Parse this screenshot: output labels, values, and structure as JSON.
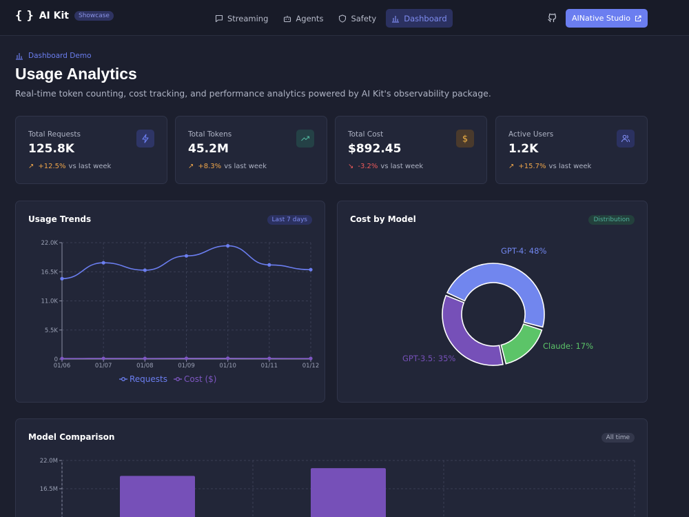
{
  "app": {
    "logo_glyph": "{ }",
    "title": "AI Kit",
    "badge": "Showcase"
  },
  "nav": [
    {
      "label": "Streaming",
      "icon": "chat-bubble-icon",
      "active": false
    },
    {
      "label": "Agents",
      "icon": "bot-icon",
      "active": false
    },
    {
      "label": "Safety",
      "icon": "shield-icon",
      "active": false
    },
    {
      "label": "Dashboard",
      "icon": "bar-chart-icon",
      "active": true
    }
  ],
  "header_actions": {
    "github_icon": "github-icon",
    "studio_label": "AINative Studio",
    "studio_icon": "external-link-icon"
  },
  "page": {
    "eyebrow": "Dashboard Demo",
    "title": "Usage Analytics",
    "subtitle": "Real-time token counting, cost tracking, and performance analytics powered by AI Kit's observability package."
  },
  "stats": [
    {
      "label": "Total Requests",
      "value": "125.8K",
      "arrow": "↗",
      "change": "+12.5%",
      "suffix": "vs last week",
      "trend": "up",
      "icon": "lightning-icon",
      "icon_color": "#6b7ef0",
      "icon_bg": "#2e3566"
    },
    {
      "label": "Total Tokens",
      "value": "45.2M",
      "arrow": "↗",
      "change": "+8.3%",
      "suffix": "vs last week",
      "trend": "up",
      "icon": "trending-up-icon",
      "icon_color": "#4fb09a",
      "icon_bg": "#244146"
    },
    {
      "label": "Total Cost",
      "value": "$892.45",
      "arrow": "↘",
      "change": "-3.2%",
      "suffix": "vs last week",
      "trend": "down",
      "icon": "dollar-icon",
      "icon_color": "#f0b145",
      "icon_bg": "#4a3a2c"
    },
    {
      "label": "Active Users",
      "value": "1.2K",
      "arrow": "↗",
      "change": "+15.7%",
      "suffix": "vs last week",
      "trend": "up",
      "icon": "users-icon",
      "icon_color": "#7f8cf0",
      "icon_bg": "#2b3160"
    }
  ],
  "colors": {
    "up": "#f0a64a",
    "down": "#ef5a5a",
    "requests": "#6b7ef0",
    "cost": "#7e57c2",
    "gpt4": "#7186ee",
    "gpt35": "#7650b8",
    "claude": "#5cc468",
    "bar": "#7650b8"
  },
  "usage_panel": {
    "title": "Usage Trends",
    "badge": "Last 7 days"
  },
  "cost_panel": {
    "title": "Cost by Model",
    "badge": "Distribution"
  },
  "model_panel": {
    "title": "Model Comparison",
    "badge": "All time"
  },
  "chart_data": [
    {
      "type": "line",
      "title": "Usage Trends",
      "x": [
        "01/06",
        "01/07",
        "01/08",
        "01/09",
        "01/10",
        "01/11",
        "01/12"
      ],
      "ylim": [
        0,
        22000
      ],
      "yticks": [
        "0",
        "5.5K",
        "11.0K",
        "16.5K",
        "22.0K"
      ],
      "grid": true,
      "legend": "bottom",
      "series": [
        {
          "name": "Requests",
          "values": [
            15200,
            18200,
            16800,
            19500,
            21400,
            17800,
            16900
          ]
        },
        {
          "name": "Cost ($)",
          "values": [
            120,
            140,
            130,
            150,
            160,
            135,
            128
          ]
        }
      ]
    },
    {
      "type": "pie",
      "title": "Cost by Model",
      "labels": [
        "GPT-4",
        "Claude",
        "GPT-3.5"
      ],
      "values": [
        48,
        17,
        35
      ],
      "slice_labels": [
        "GPT-4: 48%",
        "Claude: 17%",
        "GPT-3.5: 35%"
      ]
    },
    {
      "type": "bar",
      "title": "Model Comparison",
      "categories": [
        "",
        "",
        ""
      ],
      "ylim": [
        0,
        22000000
      ],
      "yticks": [
        "16.5M",
        "22.0M"
      ],
      "values": [
        19000000,
        20500000,
        0
      ],
      "grid": true
    }
  ]
}
